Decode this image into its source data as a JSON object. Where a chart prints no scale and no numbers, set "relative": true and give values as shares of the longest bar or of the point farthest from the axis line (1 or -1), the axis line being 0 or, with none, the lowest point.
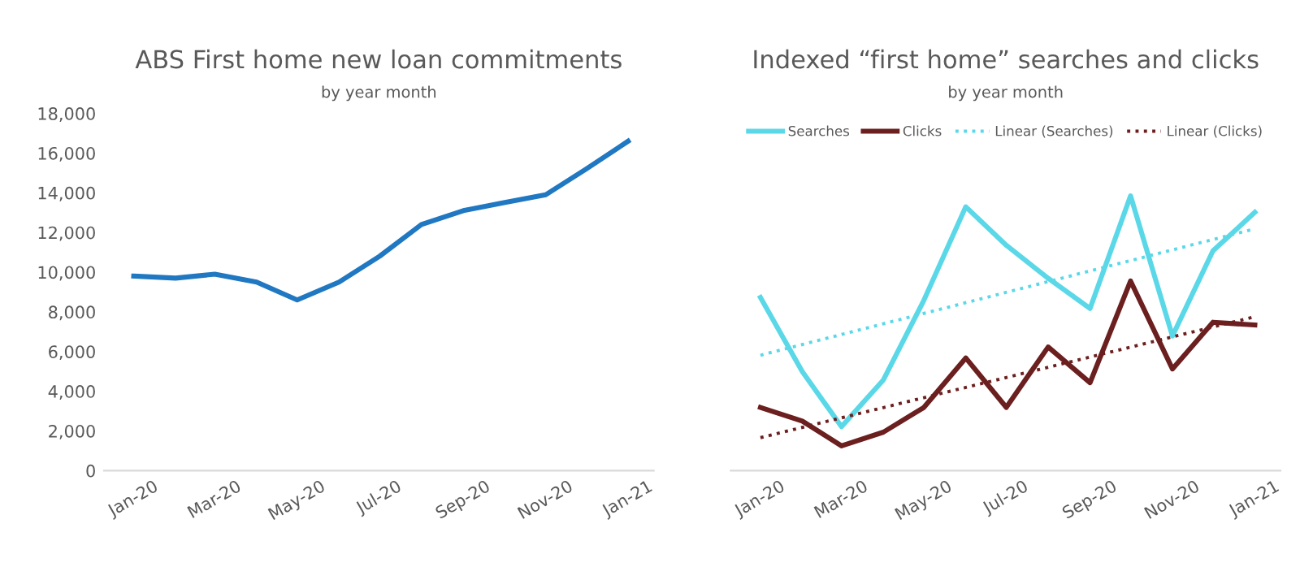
{
  "chart_data": [
    {
      "type": "line",
      "title": "ABS First home new loan commitments",
      "subtitle": "by year month",
      "x": [
        "2020-01",
        "2020-02",
        "2020-03",
        "2020-04",
        "2020-05",
        "2020-06",
        "2020-07",
        "2020-08",
        "2020-09",
        "2020-10",
        "2020-11",
        "2020-12",
        "2021-01"
      ],
      "series": [
        {
          "color": "#1f78c1",
          "values": [
            9800,
            9700,
            9900,
            9500,
            8600,
            9500,
            10800,
            12400,
            13100,
            13500,
            13900,
            15200,
            16600
          ]
        }
      ],
      "xlim": [
        "2019-12-10",
        "2021-01-20"
      ],
      "xticks": [
        {
          "value": "2020-01",
          "label": "Jan-20"
        },
        {
          "value": "2020-03",
          "label": "Mar-20"
        },
        {
          "value": "2020-05",
          "label": "May-20"
        },
        {
          "value": "2020-07",
          "label": "Jul-20"
        },
        {
          "value": "2020-09",
          "label": "Sep-20"
        },
        {
          "value": "2020-11",
          "label": "Nov-20"
        },
        {
          "value": "2021-01",
          "label": "Jan-21"
        }
      ],
      "ylim": [
        0,
        18000
      ],
      "yticks": [
        {
          "value": 0,
          "label": "0"
        },
        {
          "value": 2000,
          "label": "2,000"
        },
        {
          "value": 4000,
          "label": "4,000"
        },
        {
          "value": 6000,
          "label": "6,000"
        },
        {
          "value": 8000,
          "label": "8,000"
        },
        {
          "value": 10000,
          "label": "10,000"
        },
        {
          "value": 12000,
          "label": "12,000"
        },
        {
          "value": 14000,
          "label": "14,000"
        },
        {
          "value": 16000,
          "label": "16,000"
        },
        {
          "value": 18000,
          "label": "18,000"
        }
      ],
      "grid": false,
      "legend": false,
      "marker": "none",
      "line_style": "solid"
    },
    {
      "type": "line",
      "title": "Indexed “first home” searches and clicks",
      "subtitle": "by year month",
      "relative": true,
      "x": [
        "2020-01",
        "2020-02",
        "2020-03",
        "2020-04",
        "2020-05",
        "2020-06",
        "2020-07",
        "2020-08",
        "2020-09",
        "2020-10",
        "2020-11",
        "2020-12",
        "2021-01"
      ],
      "series": [
        {
          "name": "Searches",
          "color": "#5ad8e8",
          "values": [
            0.63,
            0.36,
            0.16,
            0.33,
            0.62,
            0.96,
            0.82,
            0.7,
            0.59,
            1.0,
            0.49,
            0.8,
            0.94
          ]
        },
        {
          "name": "Clicks",
          "color": "#6b1f1f",
          "values": [
            0.23,
            0.18,
            0.09,
            0.14,
            0.23,
            0.41,
            0.23,
            0.45,
            0.32,
            0.69,
            0.37,
            0.54,
            0.53
          ]
        },
        {
          "name": "Linear (Searches)",
          "color": "#5ad8e8",
          "line_style": "dotted",
          "x": [
            "2020-01",
            "2021-01"
          ],
          "values": [
            0.42,
            0.88
          ]
        },
        {
          "name": "Linear (Clicks)",
          "color": "#6b1f1f",
          "line_style": "dotted",
          "x": [
            "2020-01",
            "2021-01"
          ],
          "values": [
            0.12,
            0.56
          ]
        }
      ],
      "xlim": [
        "2019-12-10",
        "2021-01-20"
      ],
      "xticks": [
        {
          "value": "2020-01",
          "label": "Jan-20"
        },
        {
          "value": "2020-03",
          "label": "Mar-20"
        },
        {
          "value": "2020-05",
          "label": "May-20"
        },
        {
          "value": "2020-07",
          "label": "Jul-20"
        },
        {
          "value": "2020-09",
          "label": "Sep-20"
        },
        {
          "value": "2020-11",
          "label": "Nov-20"
        },
        {
          "value": "2021-01",
          "label": "Jan-21"
        }
      ],
      "tick_labels": "x",
      "grid": false,
      "legend": "top",
      "marker": "none",
      "line_style": "solid"
    }
  ]
}
